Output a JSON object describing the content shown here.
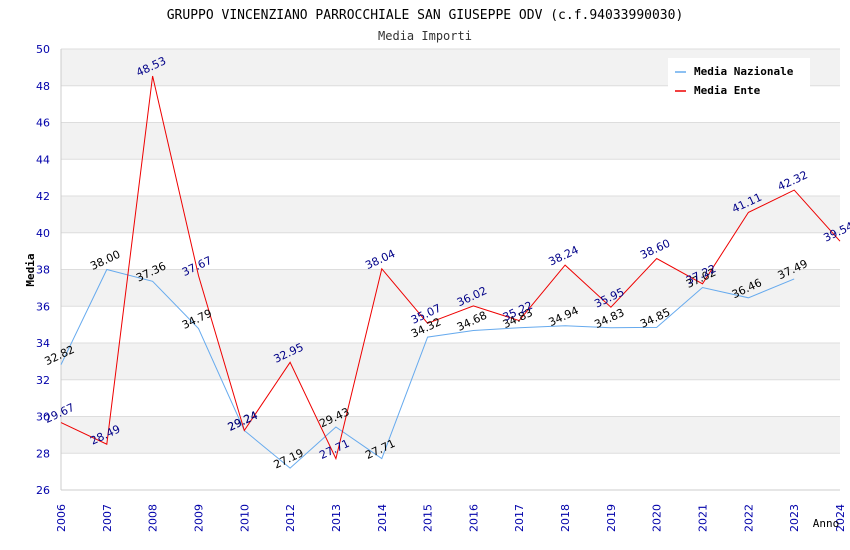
{
  "chart_data": {
    "type": "line",
    "title": "GRUPPO VINCENZIANO PARROCCHIALE SAN GIUSEPPE ODV (c.f.94033990030)",
    "subtitle": "Media Importi",
    "xlabel": "Anno",
    "ylabel": "Media",
    "ylim": [
      26,
      50
    ],
    "yticks": [
      26,
      28,
      30,
      32,
      34,
      36,
      38,
      40,
      42,
      44,
      46,
      48,
      50
    ],
    "grid": true,
    "legend_position": "top-right",
    "categories": [
      "2006",
      "2007",
      "2008",
      "2009",
      "2010",
      "2012",
      "2013",
      "2014",
      "2015",
      "2016",
      "2017",
      "2018",
      "2019",
      "2020",
      "2021",
      "2022",
      "2023",
      "2024"
    ],
    "series": [
      {
        "name": "Media Nazionale",
        "color": "#66aaee",
        "label_color": "#000000",
        "values": [
          32.82,
          38.0,
          37.36,
          34.79,
          29.24,
          27.19,
          29.43,
          27.71,
          34.32,
          34.68,
          34.83,
          34.94,
          34.83,
          34.85,
          37.02,
          36.46,
          37.49,
          null
        ],
        "labels": [
          "32.82",
          "38.00",
          "37.36",
          "34.79",
          "29.24",
          "27.19",
          "29.43",
          "27.71",
          "34.32",
          "34.68",
          "34.83",
          "34.94",
          "34.83",
          "34.85",
          "37.02",
          "36.46",
          "37.49",
          ""
        ]
      },
      {
        "name": "Media Ente",
        "color": "#ee0000",
        "label_color": "#000088",
        "values": [
          29.67,
          28.49,
          48.53,
          37.67,
          29.24,
          32.95,
          27.71,
          38.04,
          35.07,
          36.02,
          35.22,
          38.24,
          35.95,
          38.6,
          37.22,
          41.11,
          42.32,
          39.54
        ],
        "labels": [
          "29.67",
          "28.49",
          "48.53",
          "37.67",
          "29.24",
          "32.95",
          "27.71",
          "38.04",
          "35.07",
          "36.02",
          "35.22",
          "38.24",
          "35.95",
          "38.60",
          "37.22",
          "41.11",
          "42.32",
          "39.54"
        ]
      }
    ]
  }
}
